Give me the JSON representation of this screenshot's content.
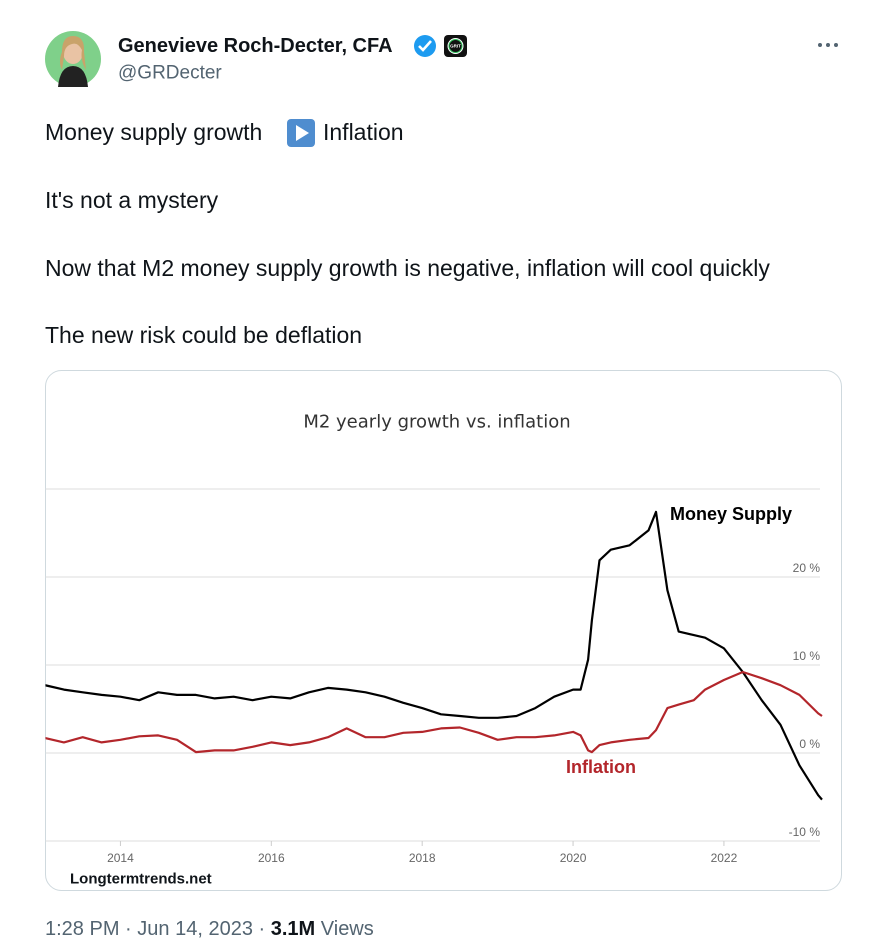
{
  "header": {
    "name": "Genevieve Roch-Decter, CFA",
    "badge": "GRIT",
    "handle": "@GRDecter"
  },
  "tweet": {
    "first": [
      "Money supply growth",
      "Inflation"
    ],
    "rest": [
      "It's not a mystery",
      "Now that M2 money supply growth is negative, inflation will cool quickly",
      "The new risk could be deflation"
    ]
  },
  "chart_data": {
    "type": "line",
    "title": "M2 yearly growth vs. inflation",
    "source": "Longtermtrends.net",
    "x": [
      2013.0,
      2013.25,
      2013.5,
      2013.75,
      2014.0,
      2014.25,
      2014.5,
      2014.75,
      2015.0,
      2015.25,
      2015.5,
      2015.75,
      2016.0,
      2016.25,
      2016.5,
      2016.75,
      2017.0,
      2017.25,
      2017.5,
      2017.75,
      2018.0,
      2018.25,
      2018.5,
      2018.75,
      2019.0,
      2019.25,
      2019.5,
      2019.75,
      2020.0,
      2020.1,
      2020.2,
      2020.25,
      2020.35,
      2020.5,
      2020.75,
      2021.0,
      2021.1,
      2021.25,
      2021.4,
      2021.6,
      2021.75,
      2022.0,
      2022.25,
      2022.5,
      2022.75,
      2023.0,
      2023.25,
      2023.3
    ],
    "series": [
      {
        "name": "Money Supply",
        "color": "#000000",
        "values": [
          7.7,
          7.2,
          6.9,
          6.6,
          6.4,
          6.0,
          6.9,
          6.6,
          6.6,
          6.2,
          6.4,
          6.0,
          6.4,
          6.2,
          6.9,
          7.4,
          7.2,
          6.9,
          6.4,
          5.7,
          5.1,
          4.4,
          4.2,
          4.0,
          4.0,
          4.2,
          5.1,
          6.4,
          7.2,
          7.2,
          10.6,
          15.1,
          21.9,
          23.1,
          23.6,
          25.3,
          27.4,
          18.5,
          13.8,
          13.4,
          13.1,
          11.9,
          9.2,
          6.0,
          3.2,
          -1.4,
          -4.8,
          -5.3
        ]
      },
      {
        "name": "Inflation",
        "color": "#b3262b",
        "values": [
          1.7,
          1.2,
          1.8,
          1.2,
          1.5,
          1.9,
          2.0,
          1.5,
          0.1,
          0.3,
          0.3,
          0.7,
          1.2,
          0.9,
          1.2,
          1.8,
          2.8,
          1.8,
          1.8,
          2.3,
          2.4,
          2.8,
          2.9,
          2.3,
          1.5,
          1.8,
          1.8,
          2.0,
          2.4,
          2.0,
          0.3,
          0.1,
          0.9,
          1.2,
          1.5,
          1.7,
          2.6,
          5.1,
          5.5,
          6.0,
          7.2,
          8.3,
          9.2,
          8.5,
          7.7,
          6.6,
          4.5,
          4.2
        ]
      }
    ],
    "xlim": [
      2013.0,
      2023.3
    ],
    "xticks": [
      2014,
      2016,
      2018,
      2020,
      2022
    ],
    "ylim": [
      -10,
      30
    ],
    "yticks": [
      {
        "value": -10,
        "label": "-10 %"
      },
      {
        "value": 0,
        "label": "0 %"
      },
      {
        "value": 10,
        "label": "10 %"
      },
      {
        "value": 20,
        "label": "20 %"
      }
    ],
    "grid": true
  },
  "footer": {
    "time": "1:28 PM",
    "separator": "·",
    "date": "Jun 14, 2023",
    "views_count": "3.1M",
    "views_label": "Views"
  }
}
